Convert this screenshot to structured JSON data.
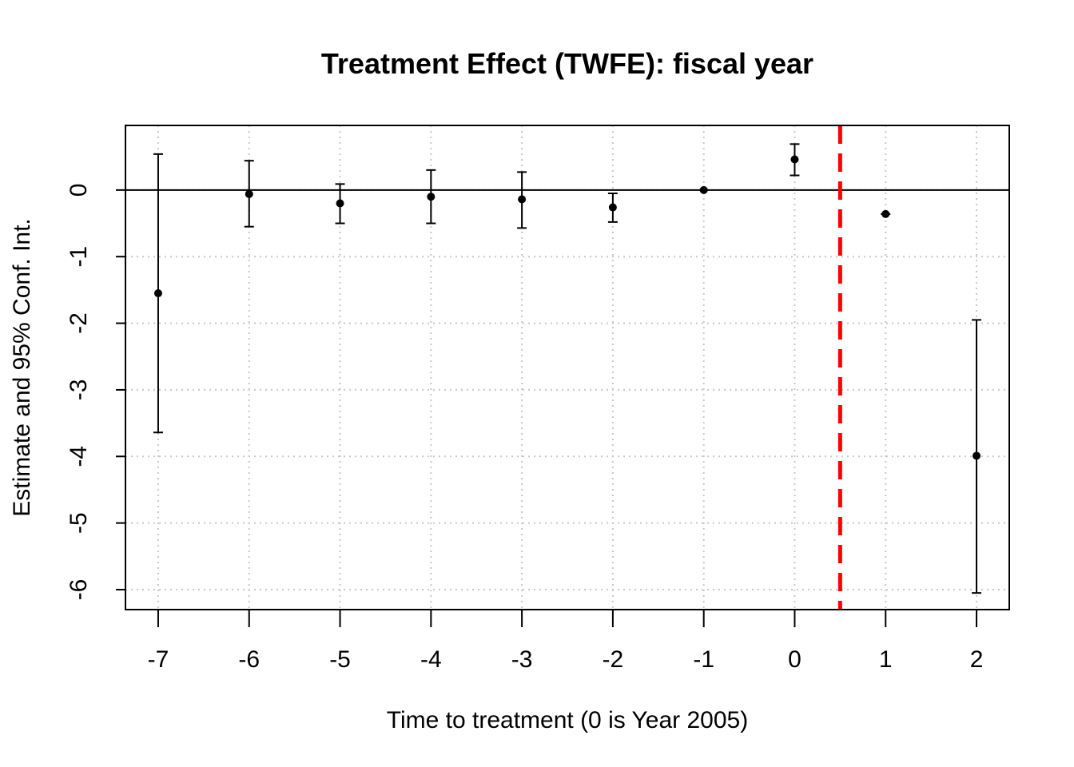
{
  "chart_data": {
    "type": "scatter",
    "title": "Treatment Effect (TWFE): fiscal year",
    "xlabel": "Time to treatment (0 is Year 2005)",
    "ylabel": "Estimate and 95% Conf. Int.",
    "xlim": [
      -7.36,
      2.36
    ],
    "ylim": [
      -6.3,
      0.97
    ],
    "x_ticks": [
      -7,
      -6,
      -5,
      -4,
      -3,
      -2,
      -1,
      0,
      1,
      2
    ],
    "x_tick_labels": [
      "-7",
      "-6",
      "-5",
      "-4",
      "-3",
      "-2",
      "-1",
      "0",
      "1",
      "2"
    ],
    "y_ticks": [
      0,
      -1,
      -2,
      -3,
      -4,
      -5,
      -6
    ],
    "y_tick_labels": [
      "0",
      "-1",
      "-2",
      "-3",
      "-4",
      "-5",
      "-6"
    ],
    "grid": true,
    "reference_line_y": 0,
    "treatment_line_x": 0.5,
    "treatment_line_color": "#ff0000",
    "points": [
      {
        "x": -7,
        "estimate": -1.55,
        "ci_low": -3.64,
        "ci_high": 0.54
      },
      {
        "x": -6,
        "estimate": -0.06,
        "ci_low": -0.55,
        "ci_high": 0.44
      },
      {
        "x": -5,
        "estimate": -0.2,
        "ci_low": -0.5,
        "ci_high": 0.09
      },
      {
        "x": -4,
        "estimate": -0.1,
        "ci_low": -0.5,
        "ci_high": 0.3
      },
      {
        "x": -3,
        "estimate": -0.14,
        "ci_low": -0.57,
        "ci_high": 0.27
      },
      {
        "x": -2,
        "estimate": -0.26,
        "ci_low": -0.48,
        "ci_high": -0.05
      },
      {
        "x": -1,
        "estimate": 0.0,
        "ci_low": 0.0,
        "ci_high": 0.0
      },
      {
        "x": 0,
        "estimate": 0.46,
        "ci_low": 0.22,
        "ci_high": 0.69
      },
      {
        "x": 1,
        "estimate": -0.36,
        "ci_low": -0.36,
        "ci_high": -0.36
      },
      {
        "x": 2,
        "estimate": -3.99,
        "ci_low": -6.05,
        "ci_high": -1.95
      }
    ]
  }
}
